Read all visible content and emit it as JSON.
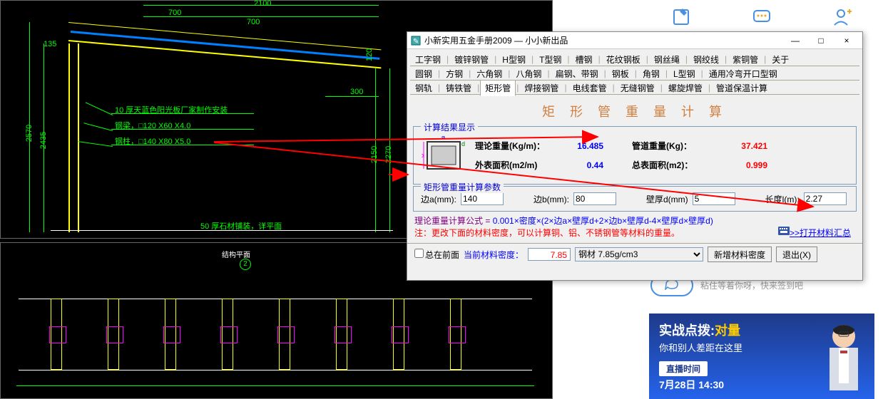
{
  "dialog": {
    "title": "小新实用五金手册2009 — 小小新出品",
    "win_min": "—",
    "win_max": "□",
    "win_close": "×",
    "tabs_row1": [
      "工字钢",
      "镀锌钢管",
      "H型钢",
      "T型钢",
      "槽钢",
      "花纹钢板",
      "钢丝绳",
      "钢绞线",
      "紫铜管",
      "关于"
    ],
    "tabs_row2": [
      "圆钢",
      "方钢",
      "六角钢",
      "八角钢",
      "扁钢、带钢",
      "钢板",
      "角钢",
      "L型钢",
      "通用冷弯开口型钢"
    ],
    "tabs_row3": [
      "钢轨",
      "铸铁管",
      "矩形管",
      "焊接钢管",
      "电线套管",
      "无缝钢管",
      "螺旋焊管",
      "管道保温计算"
    ],
    "active_tab": "矩形管",
    "calc_title": "矩 形 管 重 量 计 算",
    "results": {
      "legend": "计算结果显示",
      "label_theory": "理论重量(Kg/m)：",
      "val_theory": "16.485",
      "label_pipe": "管道重量(Kg)：",
      "val_pipe": "37.421",
      "label_outer": "外表面积(m2/m)",
      "val_outer": "0.44",
      "label_total": "总表面积(m2)：",
      "val_total": "0.999",
      "diagram_a": "a",
      "diagram_b": "b",
      "diagram_d": "d"
    },
    "params": {
      "legend": "矩形管重量计算参数",
      "label_a": "边a(mm):",
      "val_a": "140",
      "label_b": "边b(mm):",
      "val_b": "80",
      "label_d": "壁厚d(mm)",
      "val_d": "5",
      "label_l": "长度l(m):",
      "val_l": "2.27"
    },
    "formula_prefix": "理论重量计算公式 = ",
    "formula_body": "0.001×密度×(2×边a×壁厚d+2×边b×壁厚d-4×壁厚d×壁厚d)",
    "formula_note": "注：更改下面的材料密度，可以计算铜、铝、不锈钢管等材料的重量。",
    "link_materials": ">>打开材料汇总",
    "bottom": {
      "always_top": "总在前面",
      "density_label": "当前材料密度：",
      "density_value": "7.85",
      "material_options": [
        "钢材 7.85g/cm3"
      ],
      "btn_new": "新增材料密度",
      "btn_exit": "退出(X)"
    }
  },
  "cad": {
    "dim_2100": "2100",
    "dim_700a": "700",
    "dim_700b": "700",
    "dim_135": "135",
    "dim_120": "120",
    "dim_300": "300",
    "dim_2570": "2570",
    "dim_2435": "2435",
    "dim_2150": "2150",
    "dim_2270": "2270",
    "note1": "10 厚天蓝色阳光板厂家制作安装",
    "note2": "钢梁，□120 X60 X4.0",
    "note3": "钢柱，□140 X80 X5.0",
    "note4": "50 厚石材铺装，详平面",
    "lower_title": "结构平面",
    "lower_num": "2"
  },
  "side": {
    "bubble_text": "粘住等着你呀，快来签到吧",
    "promo_l1a": "实战点拨:",
    "promo_l1b": "对量",
    "promo_l2": "你和别人差距在这里",
    "promo_l3": "直播时间",
    "promo_l4": "7月28日 14:30"
  },
  "colors": {
    "cad_bg": "#000000",
    "cad_green": "#00ff00",
    "cad_yellow": "#ffff00",
    "cad_white": "#ffffff",
    "val_blue": "#0000ff",
    "val_red": "#ff0000",
    "title_orange": "#d08040",
    "promo_bg": "#1e3a8a",
    "promo_hl": "#ffcc00",
    "arrow_red": "#ff0000"
  }
}
